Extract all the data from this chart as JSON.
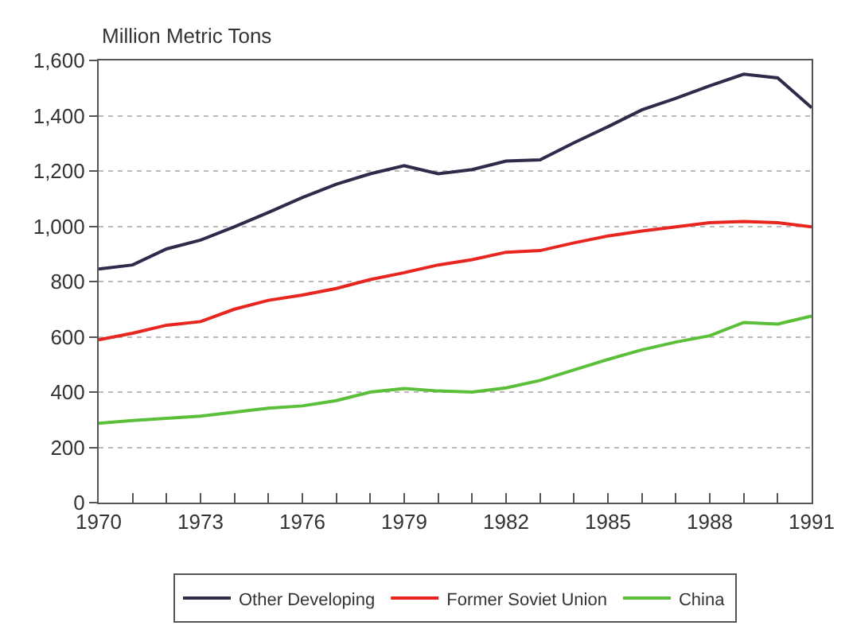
{
  "chart_data": {
    "type": "line",
    "ylabel": "Million Metric Tons",
    "x": [
      1970,
      1971,
      1972,
      1973,
      1974,
      1975,
      1976,
      1977,
      1978,
      1979,
      1980,
      1981,
      1982,
      1983,
      1984,
      1985,
      1986,
      1987,
      1988,
      1989,
      1990,
      1991
    ],
    "series": [
      {
        "name": "Other Developing",
        "color": "#2d2a4a",
        "values": [
          845,
          860,
          918,
          950,
          998,
          1050,
          1104,
          1152,
          1190,
          1219,
          1190,
          1205,
          1236,
          1240,
          1302,
          1360,
          1421,
          1463,
          1508,
          1550,
          1537,
          1429
        ]
      },
      {
        "name": "Former Soviet Union",
        "color": "#e8251f",
        "values": [
          589,
          613,
          642,
          655,
          700,
          732,
          751,
          775,
          807,
          832,
          860,
          879,
          906,
          912,
          940,
          965,
          983,
          998,
          1013,
          1017,
          1013,
          998
        ]
      },
      {
        "name": "China",
        "color": "#5cbf3a",
        "values": [
          287,
          297,
          305,
          313,
          327,
          342,
          350,
          369,
          400,
          413,
          404,
          400,
          415,
          442,
          480,
          518,
          553,
          581,
          604,
          652,
          646,
          675
        ]
      }
    ],
    "xlim": [
      1970,
      1991
    ],
    "xticks": [
      1970,
      {
        "value": 1971,
        "label": null
      },
      {
        "value": 1972,
        "label": null
      },
      1973,
      {
        "value": 1974,
        "label": null
      },
      {
        "value": 1975,
        "label": null
      },
      1976,
      {
        "value": 1977,
        "label": null
      },
      {
        "value": 1978,
        "label": null
      },
      1979,
      {
        "value": 1980,
        "label": null
      },
      {
        "value": 1981,
        "label": null
      },
      1982,
      {
        "value": 1983,
        "label": null
      },
      {
        "value": 1984,
        "label": null
      },
      1985,
      {
        "value": 1986,
        "label": null
      },
      {
        "value": 1987,
        "label": null
      },
      1988,
      {
        "value": 1989,
        "label": null
      },
      {
        "value": 1990,
        "label": null
      },
      1991
    ],
    "ylim": [
      0,
      1600
    ],
    "yticks": [
      0,
      200,
      400,
      600,
      800,
      {
        "value": 1000,
        "label": "1,000"
      },
      {
        "value": 1200,
        "label": "1,200"
      },
      {
        "value": 1400,
        "label": "1,400"
      },
      {
        "value": 1600,
        "label": "1,600"
      }
    ],
    "grid": "y",
    "legend": "bottom",
    "marker": "none",
    "line_style": "solid"
  }
}
